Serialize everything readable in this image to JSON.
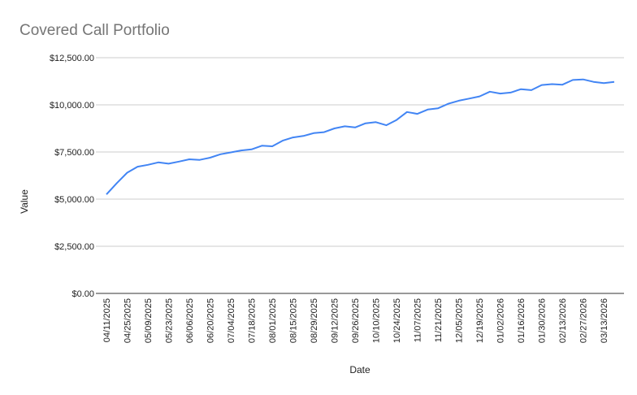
{
  "chart_data": {
    "type": "line",
    "title": "Covered Call Portfolio",
    "x_label": "Date",
    "y_label": "Value",
    "categories": [
      "04/11/2025",
      null,
      "04/25/2025",
      null,
      "05/09/2025",
      null,
      "05/23/2025",
      null,
      "06/06/2025",
      null,
      "06/20/2025",
      null,
      "07/04/2025",
      null,
      "07/18/2025",
      null,
      "08/01/2025",
      null,
      "08/15/2025",
      null,
      "08/29/2025",
      null,
      "09/12/2025",
      null,
      "09/26/2025",
      null,
      "10/10/2025",
      null,
      "10/24/2025",
      null,
      "11/07/2025",
      null,
      "11/21/2025",
      null,
      "12/05/2025",
      null,
      "12/19/2025",
      null,
      "01/02/2026",
      null,
      "01/16/2026",
      null,
      "01/30/2026",
      null,
      "02/13/2026",
      null,
      "02/27/2026",
      null,
      "03/13/2026",
      null
    ],
    "series": [
      {
        "name": "Value",
        "color": "#4285f4",
        "values": [
          5250,
          5850,
          6400,
          6720,
          6820,
          6950,
          6880,
          6990,
          7110,
          7080,
          7200,
          7380,
          7480,
          7580,
          7640,
          7830,
          7800,
          8100,
          8270,
          8350,
          8500,
          8550,
          8750,
          8860,
          8800,
          9020,
          9080,
          8920,
          9200,
          9620,
          9520,
          9750,
          9820,
          10060,
          10220,
          10330,
          10450,
          10700,
          10600,
          10650,
          10830,
          10780,
          11050,
          11100,
          11070,
          11320,
          11350,
          11220,
          11150,
          11220
        ]
      }
    ],
    "ylim": [
      0,
      12500
    ],
    "yticks": [
      {
        "value": 0,
        "label": "$0.00"
      },
      {
        "value": 2500,
        "label": "$2,500.00"
      },
      {
        "value": 5000,
        "label": "$5,000.00"
      },
      {
        "value": 7500,
        "label": "$7,500.00"
      },
      {
        "value": 10000,
        "label": "$10,000.00"
      },
      {
        "value": 12500,
        "label": "$12,500.00"
      }
    ],
    "grid": true
  }
}
